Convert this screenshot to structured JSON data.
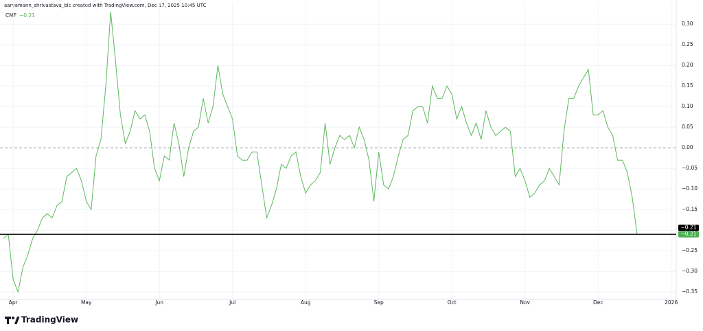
{
  "header": {
    "attribution": "aaryamann_shrivastava_blc created with TradingView.com, Dec 17, 2025 10:45 UTC"
  },
  "footer": {
    "brand": "TradingView"
  },
  "chart_data": {
    "type": "line",
    "series": [
      {
        "name": "CMF",
        "color": "#5cb85c",
        "values": [
          -0.22,
          -0.21,
          -0.32,
          -0.35,
          -0.29,
          -0.26,
          -0.22,
          -0.2,
          -0.17,
          -0.16,
          -0.17,
          -0.14,
          -0.13,
          -0.07,
          -0.06,
          -0.05,
          -0.08,
          -0.13,
          -0.15,
          -0.02,
          0.02,
          0.15,
          0.33,
          0.21,
          0.08,
          0.01,
          0.04,
          0.09,
          0.07,
          0.08,
          0.04,
          -0.05,
          -0.08,
          -0.02,
          -0.03,
          0.06,
          0.01,
          -0.07,
          0.0,
          0.04,
          0.05,
          0.12,
          0.06,
          0.1,
          0.2,
          0.13,
          0.1,
          0.07,
          -0.02,
          -0.03,
          -0.03,
          -0.01,
          -0.01,
          -0.09,
          -0.17,
          -0.14,
          -0.1,
          -0.04,
          -0.05,
          -0.02,
          -0.01,
          -0.07,
          -0.11,
          -0.09,
          -0.08,
          -0.06,
          0.06,
          -0.04,
          0.0,
          0.03,
          0.02,
          0.03,
          0.0,
          0.05,
          0.02,
          -0.03,
          -0.13,
          -0.01,
          -0.09,
          -0.1,
          -0.07,
          -0.02,
          0.02,
          0.03,
          0.09,
          0.1,
          0.1,
          0.06,
          0.15,
          0.12,
          0.12,
          0.15,
          0.13,
          0.07,
          0.1,
          0.06,
          0.03,
          0.06,
          0.02,
          0.09,
          0.05,
          0.03,
          0.04,
          0.05,
          0.04,
          -0.07,
          -0.05,
          -0.08,
          -0.12,
          -0.11,
          -0.09,
          -0.08,
          -0.05,
          -0.07,
          -0.09,
          0.04,
          0.12,
          0.12,
          0.15,
          0.17,
          0.19,
          0.08,
          0.08,
          0.09,
          0.05,
          0.03,
          -0.03,
          -0.03,
          -0.06,
          -0.12,
          -0.21,
          null,
          null,
          null,
          null,
          null,
          null,
          null
        ]
      }
    ],
    "categories": [
      null,
      null,
      "Apr",
      null,
      null,
      null,
      null,
      null,
      null,
      null,
      null,
      null,
      null,
      null,
      null,
      null,
      null,
      "May",
      null,
      null,
      null,
      null,
      null,
      null,
      null,
      null,
      null,
      null,
      null,
      null,
      null,
      null,
      "Jun",
      null,
      null,
      null,
      null,
      null,
      null,
      null,
      null,
      null,
      null,
      null,
      null,
      null,
      null,
      "Jul",
      null,
      null,
      null,
      null,
      null,
      null,
      null,
      null,
      null,
      null,
      null,
      null,
      null,
      null,
      "Aug",
      null,
      null,
      null,
      null,
      null,
      null,
      null,
      null,
      null,
      null,
      null,
      null,
      null,
      null,
      "Sep",
      null,
      null,
      null,
      null,
      null,
      null,
      null,
      null,
      null,
      null,
      null,
      null,
      null,
      null,
      "Oct",
      null,
      null,
      null,
      null,
      null,
      null,
      null,
      null,
      null,
      null,
      null,
      null,
      null,
      null,
      "Nov",
      null,
      null,
      null,
      null,
      null,
      null,
      null,
      null,
      null,
      null,
      null,
      null,
      null,
      null,
      "Dec",
      null,
      null,
      null,
      null,
      null,
      null,
      null,
      null,
      null,
      null,
      null,
      null,
      null,
      null,
      "2026"
    ],
    "ylim": [
      -0.368,
      0.352
    ],
    "yticks": [
      {
        "value": 0.3,
        "label": "0.30"
      },
      {
        "value": 0.25,
        "label": "0.25"
      },
      {
        "value": 0.2,
        "label": "0.20"
      },
      {
        "value": 0.15,
        "label": "0.15"
      },
      {
        "value": 0.1,
        "label": "0.10"
      },
      {
        "value": 0.05,
        "label": "0.05"
      },
      {
        "value": 0,
        "label": "0.00"
      },
      {
        "value": -0.05,
        "label": "−0.05"
      },
      {
        "value": -0.1,
        "label": "−0.10"
      },
      {
        "value": -0.15,
        "label": "−0.15"
      },
      {
        "value": -0.2,
        "label": "−0.20"
      },
      {
        "value": -0.25,
        "label": "−0.25"
      },
      {
        "value": -0.3,
        "label": "−0.30"
      },
      {
        "value": -0.35,
        "label": "−0.35"
      }
    ],
    "grid": true,
    "zero_line": true,
    "last_value": {
      "value": -0.21,
      "label": "−0.21"
    }
  }
}
